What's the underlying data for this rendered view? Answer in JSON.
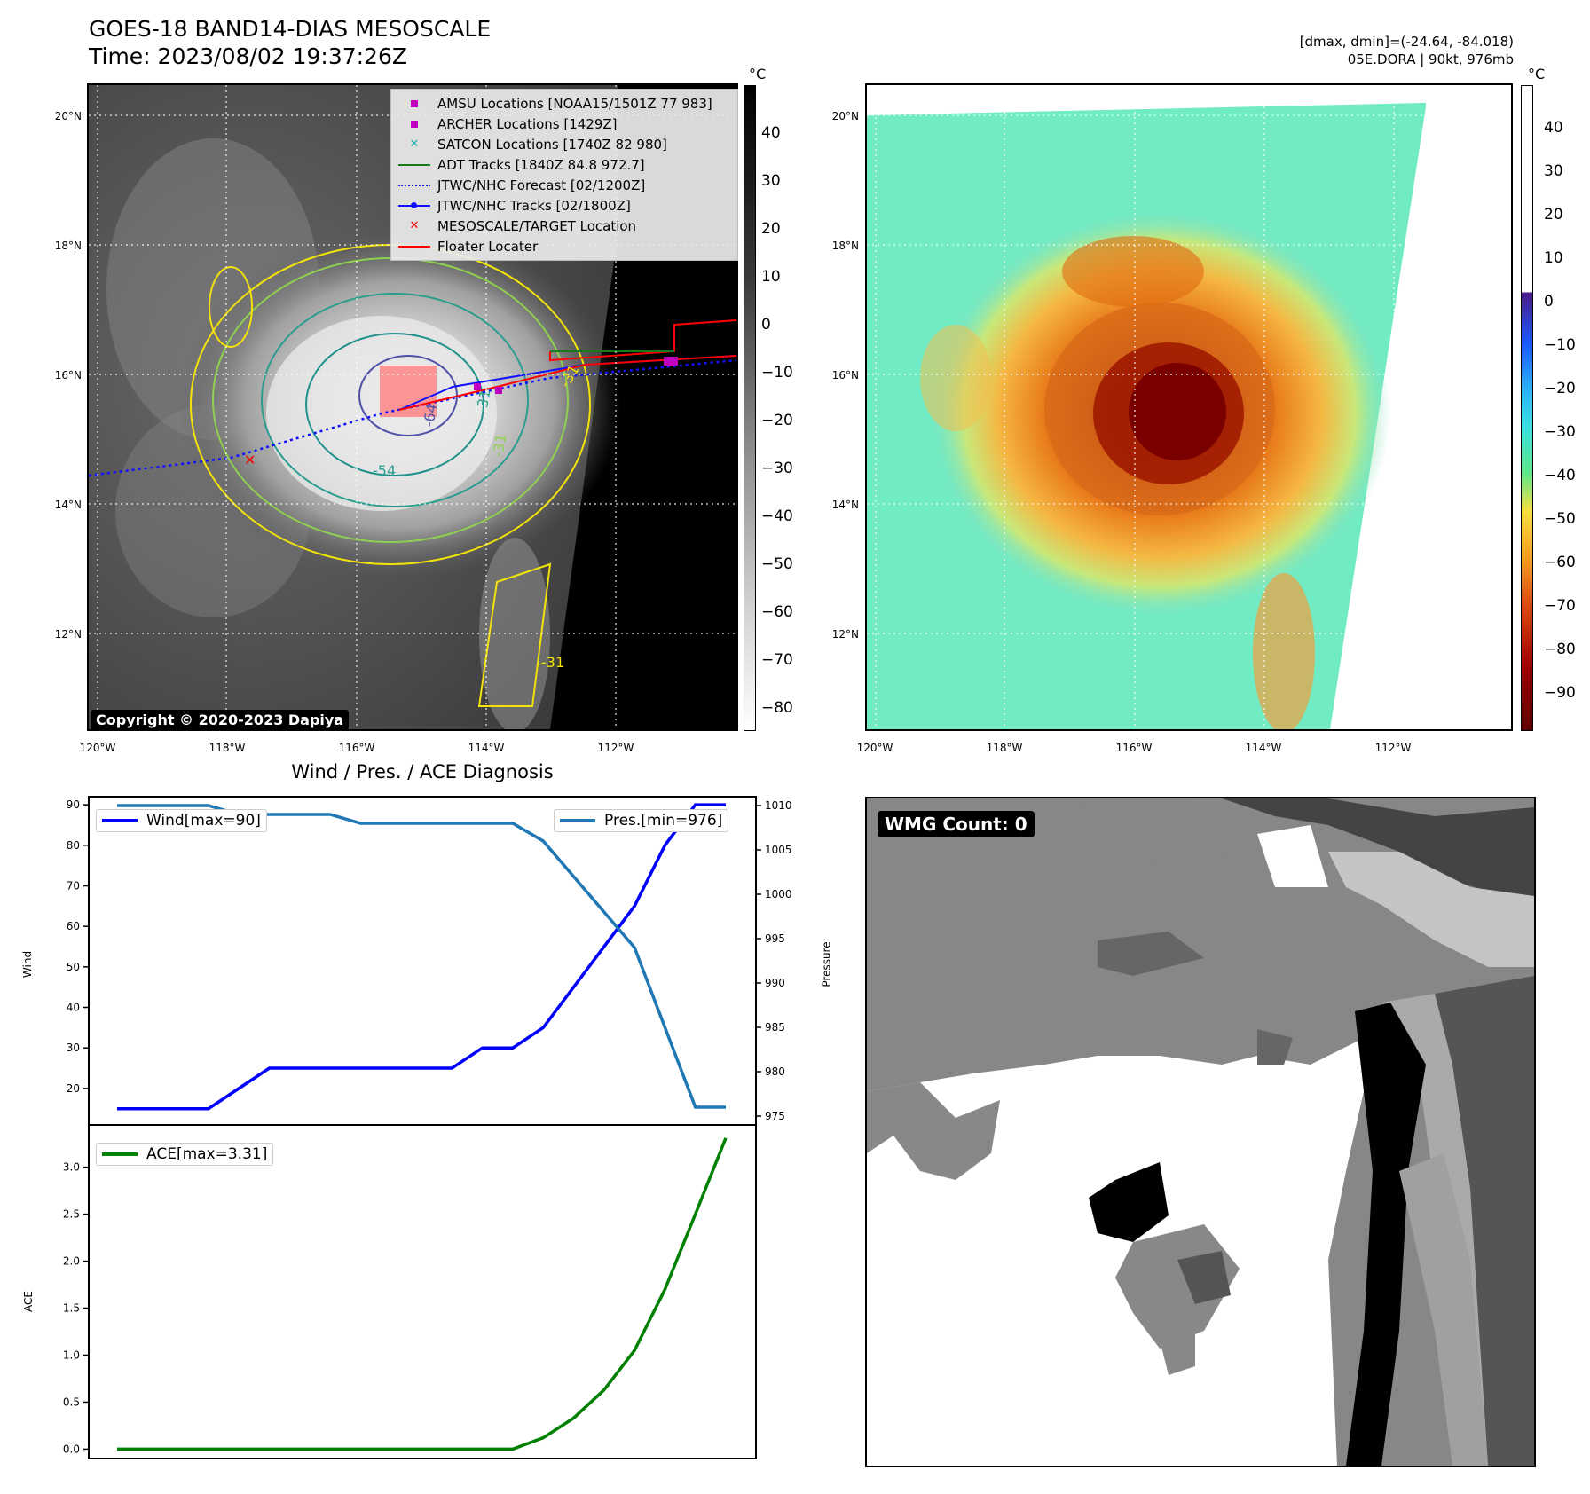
{
  "header": {
    "title_line1": "GOES-18 BAND14-DIAS MESOSCALE",
    "title_line2": "Time: 2023/08/02 19:37:26Z",
    "right_line1": "[dmax, dmin]=(-24.64, -84.018)",
    "right_line2": "05E.DORA | 90kt, 976mb"
  },
  "map_left": {
    "lat_ticks": [
      "20°N",
      "18°N",
      "16°N",
      "14°N",
      "12°N"
    ],
    "lon_ticks": [
      "120°W",
      "118°W",
      "116°W",
      "114°W",
      "112°W"
    ],
    "copyright": "Copyright © 2020-2023 Dapiya",
    "contour_labels": [
      "-54",
      "-64",
      "-31",
      "-31",
      "-31",
      "-31"
    ],
    "legend": [
      {
        "label": "AMSU Locations [NOAA15/1501Z 77 983]",
        "symbol": "square",
        "color": "#c000c0"
      },
      {
        "label": "ARCHER Locations [1429Z]",
        "symbol": "square",
        "color": "#c000c0"
      },
      {
        "label": "SATCON Locations [1740Z 82 980]",
        "symbol": "x",
        "color": "#20b2aa"
      },
      {
        "label": "ADT Tracks [1840Z 84.8 972.7]",
        "symbol": "line",
        "color": "#1a7a1a"
      },
      {
        "label": "JTWC/NHC Forecast [02/1200Z]",
        "symbol": "dotted",
        "color": "#1010ff"
      },
      {
        "label": "JTWC/NHC Tracks [02/1800Z]",
        "symbol": "line-dot",
        "color": "#1010ff"
      },
      {
        "label": "MESOSCALE/TARGET Location",
        "symbol": "x",
        "color": "#ff0000"
      },
      {
        "label": "Floater Locater",
        "symbol": "line",
        "color": "#ff0000"
      }
    ],
    "colorbar": {
      "unit": "°C",
      "ticks": [
        "40",
        "30",
        "20",
        "10",
        "0",
        "−10",
        "−20",
        "−30",
        "−40",
        "−50",
        "−60",
        "−70",
        "−80"
      ]
    }
  },
  "map_right": {
    "lat_ticks": [
      "20°N",
      "18°N",
      "16°N",
      "14°N",
      "12°N"
    ],
    "lon_ticks": [
      "120°W",
      "118°W",
      "116°W",
      "114°W",
      "112°W"
    ],
    "colorbar": {
      "unit": "°C",
      "ticks": [
        "40",
        "30",
        "20",
        "10",
        "0",
        "−10",
        "−20",
        "−30",
        "−40",
        "−50",
        "−60",
        "−70",
        "−80",
        "−90"
      ]
    }
  },
  "diagnosis": {
    "title": "Wind / Pres. / ACE Diagnosis",
    "wind_ylabel": "Wind",
    "pres_ylabel": "Pressure",
    "ace_ylabel": "ACE",
    "wind_legend": "Wind[max=90]",
    "pres_legend": "Pres.[min=976]",
    "ace_legend": "ACE[max=3.31]",
    "wind_ticks": [
      "90",
      "80",
      "70",
      "60",
      "50",
      "40",
      "30",
      "20"
    ],
    "pres_ticks": [
      "1010",
      "1005",
      "1000",
      "995",
      "990",
      "985",
      "980",
      "975"
    ],
    "ace_ticks": [
      "3.0",
      "2.5",
      "2.0",
      "1.5",
      "1.0",
      "0.5",
      "0.0"
    ]
  },
  "wmg": {
    "label": "WMG Count: 0"
  },
  "chart_data": [
    {
      "type": "line",
      "title": "Wind / Pres. / ACE Diagnosis",
      "ylabel": "Wind",
      "ylim": [
        11,
        92
      ],
      "series": [
        {
          "name": "Wind[max=90]",
          "color": "#0000ff",
          "values": [
            15,
            15,
            15,
            15,
            20,
            25,
            25,
            25,
            25,
            25,
            25,
            25,
            30,
            30,
            35,
            45,
            55,
            65,
            80,
            90,
            90
          ]
        }
      ]
    },
    {
      "type": "line",
      "ylabel": "Pressure",
      "ylim": [
        974,
        1011
      ],
      "series": [
        {
          "name": "Pres.[min=976]",
          "color": "#1f77b4",
          "values": [
            1010,
            1010,
            1010,
            1010,
            1009,
            1009,
            1009,
            1009,
            1008,
            1008,
            1008,
            1008,
            1008,
            1008,
            1006,
            1002,
            998,
            994,
            985,
            976,
            976
          ]
        }
      ]
    },
    {
      "type": "line",
      "ylabel": "ACE",
      "ylim": [
        -0.1,
        3.45
      ],
      "series": [
        {
          "name": "ACE[max=3.31]",
          "color": "#008000",
          "values": [
            0,
            0,
            0,
            0,
            0,
            0,
            0,
            0,
            0,
            0,
            0,
            0,
            0,
            0,
            0.12,
            0.33,
            0.63,
            1.05,
            1.7,
            2.5,
            3.31
          ]
        }
      ]
    }
  ]
}
